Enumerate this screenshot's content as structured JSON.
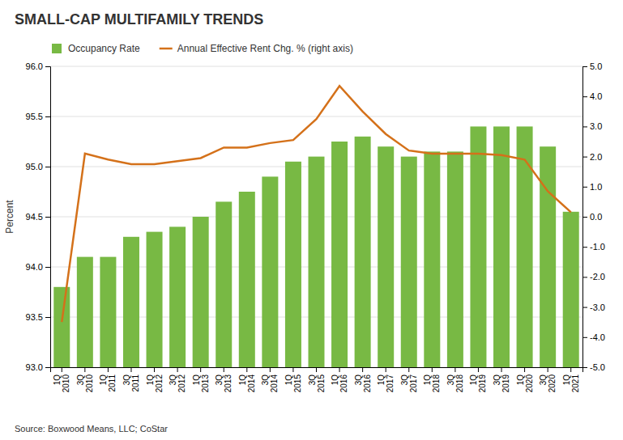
{
  "chart_data": {
    "type": "bar",
    "title": "SMALL-CAP MULTIFAMILY TRENDS",
    "ylabel": "Percent",
    "annotations": [
      "Source: Boxwood Means, LLC; CoStar"
    ],
    "categories": [
      "1Q\n2010",
      "3Q\n2010",
      "1Q\n2011",
      "3Q\n2011",
      "1Q\n2012",
      "3Q\n2012",
      "1Q\n2013",
      "3Q\n2013",
      "1Q\n2014",
      "3Q\n2014",
      "1Q\n2015",
      "3Q\n2015",
      "1Q\n2016",
      "3Q\n2016",
      "1Q\n2017",
      "3Q\n2017",
      "1Q\n2018",
      "3Q\n2018",
      "1Q\n2019",
      "3Q\n2019",
      "1Q\n2020",
      "3Q\n2020",
      "1Q\n2021"
    ],
    "series": [
      {
        "name": "Occupancy Rate",
        "type": "bar",
        "color": "#78b944",
        "values": [
          93.8,
          94.1,
          94.1,
          94.3,
          94.35,
          94.4,
          94.5,
          94.65,
          94.75,
          94.9,
          95.05,
          95.1,
          95.25,
          95.3,
          95.2,
          95.1,
          95.15,
          95.15,
          95.4,
          95.4,
          95.4,
          95.2,
          94.55
        ]
      },
      {
        "name": "Annual Effective Rent Chg. % (right axis)",
        "type": "line",
        "axis": "y2",
        "color": "#d4711a",
        "values": [
          -3.5,
          2.1,
          1.9,
          1.75,
          1.75,
          1.85,
          1.95,
          2.3,
          2.3,
          2.45,
          2.55,
          3.25,
          4.35,
          3.5,
          2.75,
          2.2,
          2.1,
          2.1,
          2.1,
          2.05,
          1.9,
          0.85,
          0.15
        ]
      }
    ],
    "ylim": [
      93.0,
      96.0
    ],
    "yticks": [
      {
        "value": 93.0,
        "label": "93.0"
      },
      93.5,
      {
        "value": 94.0,
        "label": "94.0"
      },
      94.5,
      {
        "value": 95.0,
        "label": "95.0"
      },
      95.5,
      {
        "value": 96.0,
        "label": "96.0"
      }
    ],
    "y2lim": [
      -5.0,
      5.0
    ],
    "y2ticks": [
      {
        "value": -5.0,
        "label": "-5.0"
      },
      {
        "value": -4.0,
        "label": "-4.0"
      },
      {
        "value": -3.0,
        "label": "-3.0"
      },
      {
        "value": -2.0,
        "label": "-2.0"
      },
      {
        "value": -1.0,
        "label": "-1.0"
      },
      {
        "value": 0.0,
        "label": "0.0"
      },
      {
        "value": 1.0,
        "label": "1.0"
      },
      {
        "value": 2.0,
        "label": "2.0"
      },
      {
        "value": 3.0,
        "label": "3.0"
      },
      {
        "value": 4.0,
        "label": "4.0"
      },
      {
        "value": 5.0,
        "label": "5.0"
      }
    ],
    "grid": true,
    "legend": "top-left"
  }
}
